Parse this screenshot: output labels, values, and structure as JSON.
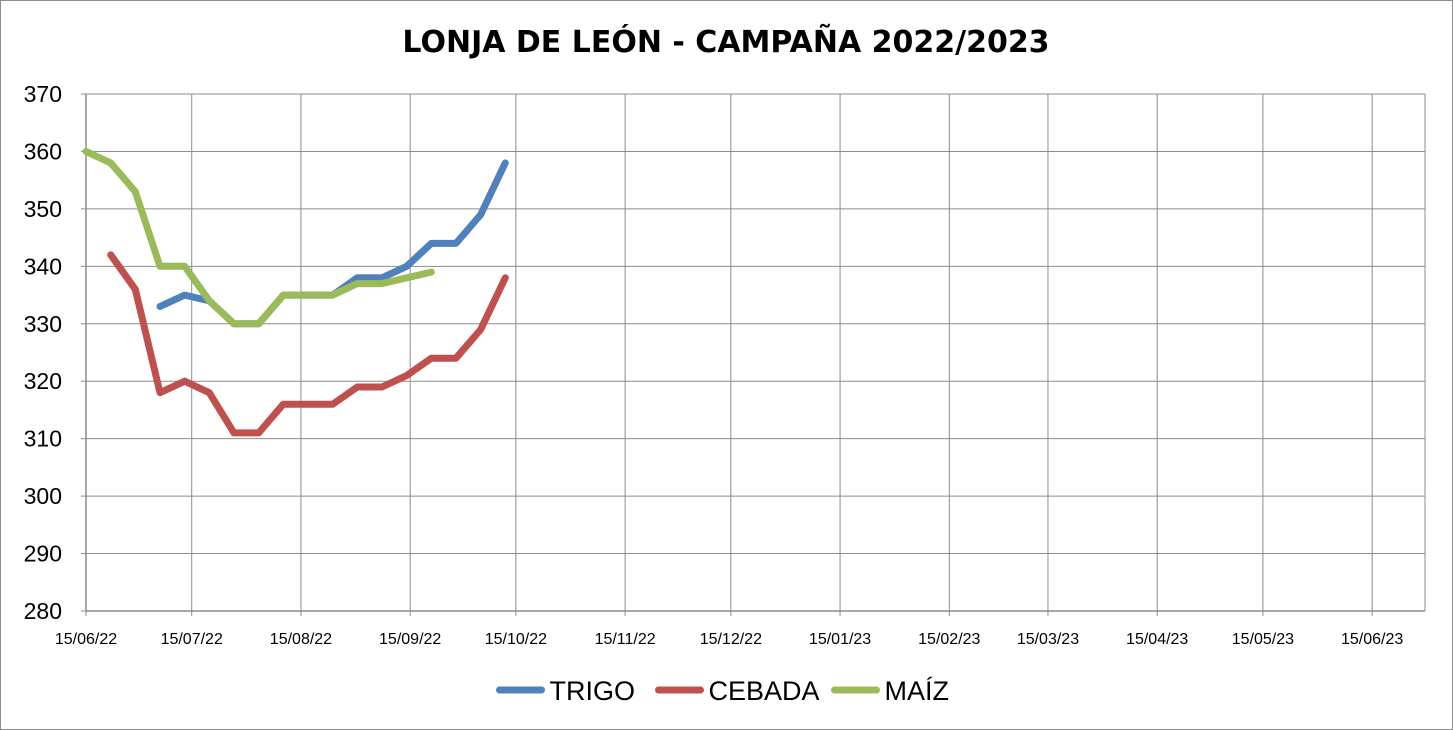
{
  "chart_data": {
    "type": "line",
    "title": "LONJA DE LEÓN - CAMPAÑA 2022/2023",
    "xlabel": "",
    "ylabel": "",
    "ylim": [
      280,
      370
    ],
    "yticks": [
      280,
      290,
      300,
      310,
      320,
      330,
      340,
      350,
      360,
      370
    ],
    "xlim": [
      "2022-06-15",
      "2023-06-30"
    ],
    "xticks": [
      {
        "date": "2022-06-15",
        "label": "15/06/22"
      },
      {
        "date": "2022-07-15",
        "label": "15/07/22"
      },
      {
        "date": "2022-08-15",
        "label": "15/08/22"
      },
      {
        "date": "2022-09-15",
        "label": "15/09/22"
      },
      {
        "date": "2022-10-15",
        "label": "15/10/22"
      },
      {
        "date": "2022-11-15",
        "label": "15/11/22"
      },
      {
        "date": "2022-12-15",
        "label": "15/12/22"
      },
      {
        "date": "2023-01-15",
        "label": "15/01/23"
      },
      {
        "date": "2023-02-15",
        "label": "15/02/23"
      },
      {
        "date": "2023-03-15",
        "label": "15/03/23"
      },
      {
        "date": "2023-04-15",
        "label": "15/04/23"
      },
      {
        "date": "2023-05-15",
        "label": "15/05/23"
      },
      {
        "date": "2023-06-15",
        "label": "15/06/23"
      }
    ],
    "grid": true,
    "legend": "bottom",
    "series": [
      {
        "name": "TRIGO",
        "color": "#4f81bd",
        "x": [
          "2022-07-06",
          "2022-07-13",
          "2022-07-20",
          "2022-07-27",
          "2022-08-03",
          "2022-08-10",
          "2022-08-17",
          "2022-08-24",
          "2022-08-31",
          "2022-09-07",
          "2022-09-14",
          "2022-09-21",
          "2022-09-28",
          "2022-10-05",
          "2022-10-12"
        ],
        "y": [
          333,
          335,
          334,
          330,
          330,
          335,
          335,
          335,
          338,
          338,
          340,
          344,
          344,
          349,
          358
        ]
      },
      {
        "name": "CEBADA",
        "color": "#c0504d",
        "x": [
          "2022-06-22",
          "2022-06-29",
          "2022-07-06",
          "2022-07-13",
          "2022-07-20",
          "2022-07-27",
          "2022-08-03",
          "2022-08-10",
          "2022-08-17",
          "2022-08-24",
          "2022-08-31",
          "2022-09-07",
          "2022-09-14",
          "2022-09-21",
          "2022-09-28",
          "2022-10-05",
          "2022-10-12"
        ],
        "y": [
          342,
          336,
          318,
          320,
          318,
          311,
          311,
          316,
          316,
          316,
          319,
          319,
          321,
          324,
          324,
          329,
          338
        ]
      },
      {
        "name": "MAÍZ",
        "color": "#9bbb59",
        "x": [
          "2022-06-15",
          "2022-06-22",
          "2022-06-29",
          "2022-07-06",
          "2022-07-13",
          "2022-07-20",
          "2022-07-27",
          "2022-08-03",
          "2022-08-10",
          "2022-08-17",
          "2022-08-24",
          "2022-08-31",
          "2022-09-07",
          "2022-09-14",
          "2022-09-21"
        ],
        "y": [
          360,
          358,
          353,
          340,
          340,
          334,
          330,
          330,
          335,
          335,
          335,
          337,
          337,
          338,
          339
        ]
      }
    ]
  }
}
